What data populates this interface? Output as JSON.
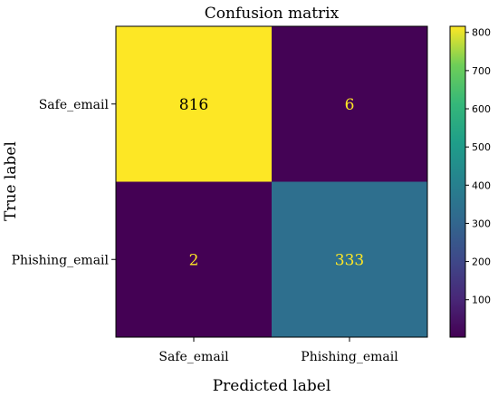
{
  "chart_data": {
    "type": "heatmap",
    "title": "Confusion matrix",
    "xlabel": "Predicted label",
    "ylabel": "True label",
    "x_categories": [
      "Safe_email",
      "Phishing_email"
    ],
    "y_categories": [
      "Safe_email",
      "Phishing_email"
    ],
    "matrix": [
      [
        816,
        6
      ],
      [
        2,
        333
      ]
    ],
    "colormap": "viridis",
    "colorbar": {
      "min": 2,
      "max": 816,
      "ticks": [
        100,
        200,
        300,
        400,
        500,
        600,
        700,
        800
      ]
    },
    "grid": false,
    "legend": "colorbar-right"
  }
}
